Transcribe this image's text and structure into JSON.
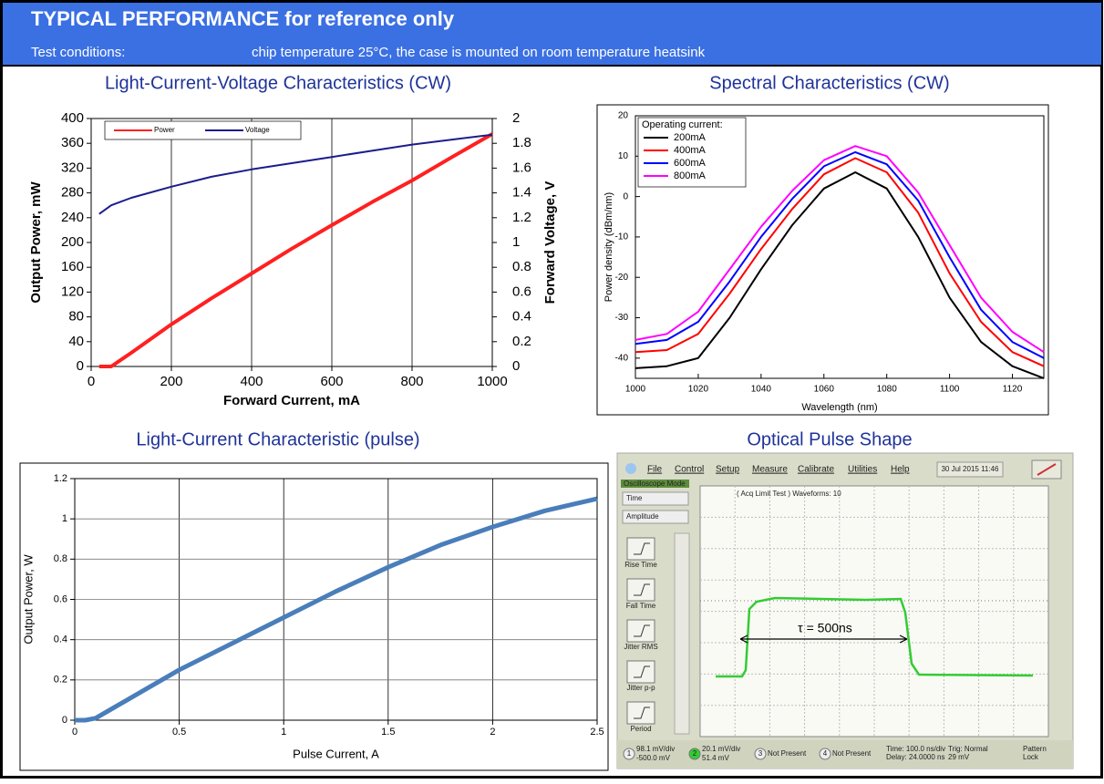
{
  "header": {
    "title": "TYPICAL PERFORMANCE for reference only",
    "conditions_label": "Test conditions:",
    "conditions": "chip temperature 25°C, the case is mounted on room temperature heatsink"
  },
  "chart_data": [
    {
      "type": "line",
      "title": "Light-Current-Voltage Characteristics (CW)",
      "x_label": "Forward Current, mA",
      "y_label": "Output Power, mW",
      "y2_label": "Forward Voltage, V",
      "xlim": [
        0,
        1000
      ],
      "xticks": [
        0,
        200,
        400,
        600,
        800,
        1000
      ],
      "ylim": [
        0,
        400
      ],
      "yticks": [
        0,
        40,
        80,
        120,
        160,
        200,
        240,
        280,
        320,
        360,
        400
      ],
      "y2lim": [
        0,
        2
      ],
      "y2ticks": [
        0,
        0.2,
        0.4,
        0.6,
        0.8,
        1,
        1.2,
        1.4,
        1.6,
        1.8,
        2
      ],
      "grid": "x",
      "legend": "upper left",
      "x": [
        20,
        50,
        100,
        200,
        300,
        400,
        500,
        600,
        700,
        800,
        900,
        1000
      ],
      "series": [
        {
          "name": "Power",
          "color": "#ff2020",
          "values": [
            0,
            0,
            22,
            68,
            110,
            150,
            190,
            228,
            265,
            300,
            338,
            375
          ]
        },
        {
          "name": "Voltage",
          "color": "#1c1c8c",
          "axis": "y2",
          "values": [
            1.23,
            1.3,
            1.36,
            1.45,
            1.53,
            1.59,
            1.64,
            1.69,
            1.74,
            1.79,
            1.83,
            1.87
          ]
        }
      ]
    },
    {
      "type": "line",
      "title": "Spectral Characteristics (CW)",
      "x_label": "Wavelength (nm)",
      "y_label": "Power density (dBm/nm)",
      "xlim": [
        1000,
        1130
      ],
      "xticks": [
        1000,
        1020,
        1040,
        1060,
        1080,
        1100,
        1120
      ],
      "ylim": [
        -45,
        20
      ],
      "yticks": [
        -40,
        -30,
        -20,
        -10,
        0,
        10,
        20
      ],
      "grid": false,
      "legend": "upper left",
      "legend_title": "Operating current:",
      "x": [
        1000,
        1010,
        1020,
        1030,
        1040,
        1050,
        1060,
        1070,
        1080,
        1090,
        1100,
        1110,
        1120,
        1130
      ],
      "series": [
        {
          "name": "200mA",
          "color": "#000000",
          "values": [
            -42.5,
            -42,
            -40,
            -30,
            -18,
            -7,
            2,
            6,
            2,
            -10,
            -25,
            -36,
            -42,
            -45
          ]
        },
        {
          "name": "400mA",
          "color": "#ff0000",
          "values": [
            -38.5,
            -38,
            -34,
            -24,
            -13,
            -3,
            5.5,
            9.5,
            6,
            -4,
            -19,
            -31,
            -38.5,
            -42
          ]
        },
        {
          "name": "600mA",
          "color": "#0000ff",
          "values": [
            -36.5,
            -35.5,
            -31,
            -21,
            -10,
            -0.5,
            7.5,
            11,
            8,
            -1,
            -15,
            -28,
            -36,
            -40
          ]
        },
        {
          "name": "800mA",
          "color": "#ff00ff",
          "values": [
            -35.5,
            -34,
            -28.5,
            -18,
            -7.5,
            1.5,
            9,
            12.5,
            10,
            1,
            -12,
            -25,
            -33.5,
            -38.5
          ]
        }
      ]
    },
    {
      "type": "line",
      "title": "Light-Current Characteristic (pulse)",
      "x_label": "Pulse Current, A",
      "y_label": "Output Power, W",
      "xlim": [
        0,
        2.5
      ],
      "xticks": [
        0,
        0.5,
        1,
        1.5,
        2,
        2.5
      ],
      "ylim": [
        0,
        1.2
      ],
      "yticks": [
        0,
        0.2,
        0.4,
        0.6,
        0.8,
        1,
        1.2
      ],
      "grid": "both",
      "x": [
        0,
        0.05,
        0.1,
        0.25,
        0.5,
        0.75,
        1,
        1.25,
        1.5,
        1.75,
        2,
        2.25,
        2.5
      ],
      "series": [
        {
          "color": "#4a7ebb",
          "values": [
            0,
            0,
            0.01,
            0.1,
            0.25,
            0.38,
            0.51,
            0.64,
            0.76,
            0.87,
            0.96,
            1.04,
            1.1
          ]
        }
      ]
    }
  ],
  "oscilloscope": {
    "title": "Optical Pulse Shape",
    "menu": [
      "File",
      "Control",
      "Setup",
      "Measure",
      "Calibrate",
      "Utilities",
      "Help"
    ],
    "date": "30 Jul 2015  11:46",
    "mode": "Oscilloscope Mode",
    "selectors": [
      "Time",
      "Amplitude"
    ],
    "buttons": [
      "Rise Time",
      "Fall Time",
      "Jitter RMS",
      "Jitter p-p",
      "Period"
    ],
    "screen_text": "( Acq Limit Test )  Waveforms: 10",
    "annotation": "τ = 500ns",
    "channels": [
      {
        "number": "1",
        "line1": "98.1 mV/div",
        "line2": "-500.0 mV"
      },
      {
        "number": "2",
        "line1": "20.1 mV/div",
        "line2": "51.4 mV"
      },
      {
        "number": "3",
        "line1": "Not Present"
      },
      {
        "number": "4",
        "line1": "Not Present"
      }
    ],
    "timebase": [
      "Time: 100.0 ns/div",
      "Delay: 24.0000 ns"
    ],
    "trigger": [
      "Trig: Normal",
      "29 mV"
    ],
    "pattern": [
      "Pattern",
      "Lock"
    ]
  }
}
